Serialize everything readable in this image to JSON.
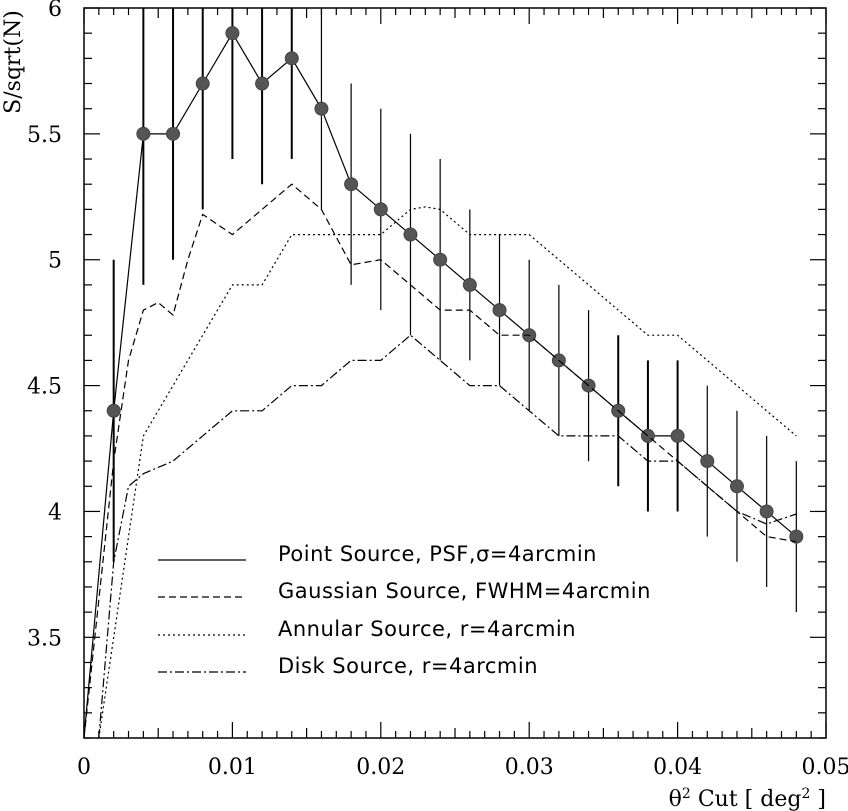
{
  "chart_data": {
    "type": "line",
    "xlabel": "θ² Cut [ deg² ]",
    "ylabel": "S/sqrt(N)",
    "xlim": [
      0,
      0.05
    ],
    "ylim": [
      3.1,
      6.0
    ],
    "xticks": [
      "0",
      "0.01",
      "0.02",
      "0.03",
      "0.04",
      "0.05"
    ],
    "yticks": [
      "3.5",
      "4",
      "4.5",
      "5",
      "5.5",
      "6"
    ],
    "xtick_values": [
      0,
      0.01,
      0.02,
      0.03,
      0.04,
      0.05
    ],
    "ytick_values": [
      3.5,
      4,
      4.5,
      5,
      5.5,
      6
    ],
    "grid": false,
    "legend_placement": "bottom-left",
    "series": [
      {
        "name": "Point Source, PSF,σ=4arcmin",
        "style": "solid-markers",
        "x": [
          0.002,
          0.004,
          0.006,
          0.008,
          0.01,
          0.012,
          0.014,
          0.016,
          0.018,
          0.02,
          0.022,
          0.024,
          0.026,
          0.028,
          0.03,
          0.032,
          0.034,
          0.036,
          0.038,
          0.04,
          0.042,
          0.044,
          0.046,
          0.048
        ],
        "y": [
          4.4,
          5.5,
          5.5,
          5.7,
          5.9,
          5.7,
          5.8,
          5.6,
          5.3,
          5.2,
          5.1,
          5.0,
          4.9,
          4.8,
          4.7,
          4.6,
          4.5,
          4.4,
          4.3,
          4.3,
          4.2,
          4.1,
          4.0,
          3.9
        ],
        "yerr_low": [
          3.8,
          4.9,
          5.0,
          5.2,
          5.4,
          5.3,
          5.4,
          5.2,
          4.9,
          4.8,
          4.7,
          4.6,
          4.6,
          4.5,
          4.4,
          4.3,
          4.2,
          4.1,
          4.0,
          4.0,
          3.9,
          3.8,
          3.7,
          3.6
        ],
        "yerr_high": [
          5.0,
          6.1,
          6.0,
          6.2,
          6.4,
          6.1,
          6.2,
          6.0,
          5.7,
          5.6,
          5.5,
          5.4,
          5.2,
          5.1,
          5.0,
          4.9,
          4.8,
          4.7,
          4.6,
          4.6,
          4.5,
          4.4,
          4.3,
          4.2
        ]
      },
      {
        "name": "Gaussian Source, FWHM=4arcmin",
        "style": "dashed",
        "x": [
          0.0,
          0.002,
          0.003,
          0.004,
          0.005,
          0.006,
          0.007,
          0.008,
          0.01,
          0.012,
          0.014,
          0.016,
          0.018,
          0.02,
          0.022,
          0.024,
          0.026,
          0.028,
          0.03,
          0.032,
          0.034,
          0.036,
          0.038,
          0.04,
          0.042,
          0.044,
          0.046,
          0.048
        ],
        "y": [
          3.1,
          4.2,
          4.6,
          4.8,
          4.83,
          4.78,
          5.0,
          5.18,
          5.1,
          5.2,
          5.3,
          5.2,
          4.98,
          5.0,
          4.9,
          4.8,
          4.8,
          4.7,
          4.7,
          4.6,
          4.5,
          4.4,
          4.3,
          4.2,
          4.1,
          4.0,
          3.9,
          3.88
        ]
      },
      {
        "name": "Annular Source, r=4arcmin",
        "style": "dotted",
        "x": [
          0.001,
          0.002,
          0.004,
          0.006,
          0.008,
          0.01,
          0.012,
          0.014,
          0.016,
          0.018,
          0.02,
          0.022,
          0.023,
          0.024,
          0.026,
          0.028,
          0.03,
          0.032,
          0.034,
          0.036,
          0.038,
          0.04,
          0.042,
          0.044,
          0.046,
          0.048
        ],
        "y": [
          3.1,
          3.5,
          4.3,
          4.5,
          4.7,
          4.9,
          4.9,
          5.1,
          5.1,
          5.1,
          5.1,
          5.2,
          5.21,
          5.2,
          5.1,
          5.1,
          5.1,
          5.0,
          4.9,
          4.8,
          4.7,
          4.7,
          4.6,
          4.5,
          4.4,
          4.3
        ]
      },
      {
        "name": "Disk Source, r=4arcmin",
        "style": "dash-dot",
        "x": [
          0.001,
          0.002,
          0.003,
          0.004,
          0.006,
          0.008,
          0.01,
          0.012,
          0.014,
          0.016,
          0.018,
          0.02,
          0.022,
          0.024,
          0.026,
          0.028,
          0.03,
          0.032,
          0.034,
          0.036,
          0.038,
          0.04,
          0.042,
          0.044,
          0.046,
          0.048
        ],
        "y": [
          3.1,
          3.8,
          4.1,
          4.15,
          4.2,
          4.3,
          4.4,
          4.4,
          4.5,
          4.5,
          4.6,
          4.6,
          4.7,
          4.6,
          4.5,
          4.5,
          4.4,
          4.3,
          4.3,
          4.3,
          4.2,
          4.2,
          4.1,
          4.0,
          3.95,
          3.99
        ]
      }
    ]
  }
}
